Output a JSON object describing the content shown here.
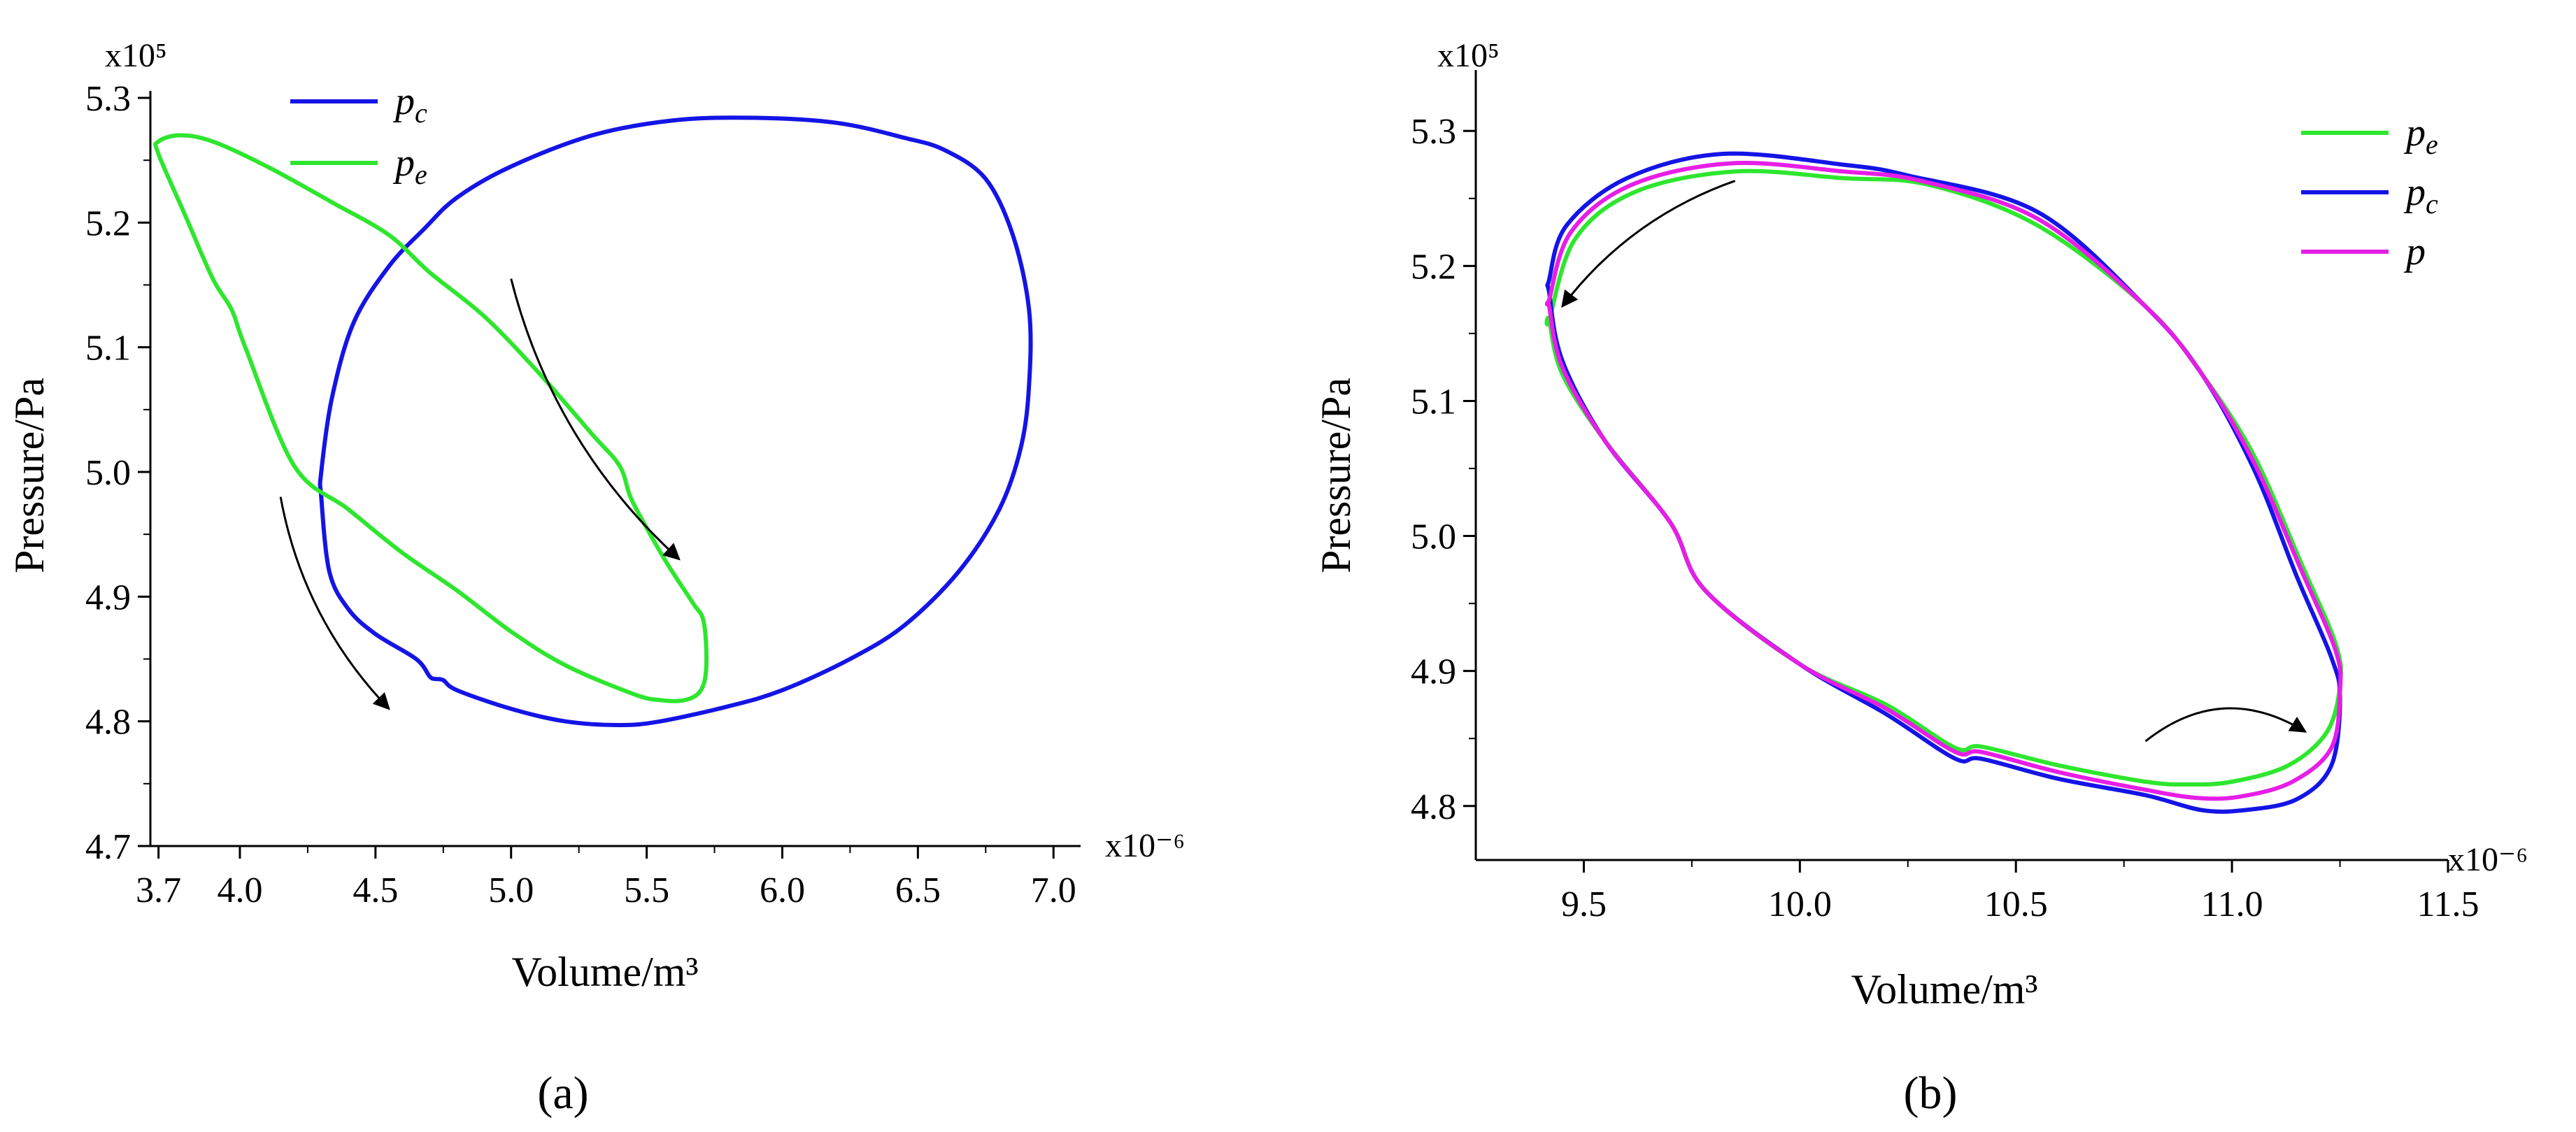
{
  "chart_data": [
    {
      "panel_label": "(a)",
      "type": "line",
      "xlabel": "Volume/m³",
      "ylabel": "Pressure/Pa",
      "x_multiplier": "x10⁻⁶",
      "y_multiplier": "x10⁵",
      "xlim": [
        3.67,
        7.1
      ],
      "ylim": [
        4.7,
        5.3
      ],
      "xticks": [
        "3.7",
        "4.0",
        "4.5",
        "5.0",
        "5.5",
        "6.0",
        "6.5",
        "7.0"
      ],
      "yticks": [
        "4.7",
        "4.8",
        "4.9",
        "5.0",
        "5.1",
        "5.2",
        "5.3"
      ],
      "legend_position": "top-left",
      "series": [
        {
          "name": "p_c",
          "color": "#1414e6",
          "closed": true,
          "x": [
            4.3,
            4.34,
            4.42,
            4.55,
            4.68,
            4.8,
            5.0,
            5.3,
            5.6,
            5.9,
            6.2,
            6.45,
            6.6,
            6.75,
            6.85,
            6.91,
            6.91,
            6.88,
            6.8,
            6.65,
            6.45,
            6.25,
            6.0,
            5.8,
            5.55,
            5.4,
            5.2,
            5.0,
            4.8,
            4.75,
            4.72,
            4.7,
            4.65,
            4.5,
            4.4,
            4.33,
            4.3
          ],
          "y": [
            5.0,
            5.06,
            5.12,
            5.165,
            5.195,
            5.22,
            5.245,
            5.27,
            5.282,
            5.284,
            5.28,
            5.268,
            5.258,
            5.235,
            5.19,
            5.13,
            5.07,
            5.02,
            4.97,
            4.92,
            4.877,
            4.85,
            4.825,
            4.812,
            4.8,
            4.797,
            4.8,
            4.81,
            4.825,
            4.833,
            4.834,
            4.836,
            4.85,
            4.87,
            4.89,
            4.92,
            4.98
          ]
        },
        {
          "name": "p_e",
          "color": "#2ee62e",
          "closed": true,
          "x": [
            3.7,
            3.78,
            3.9,
            4.1,
            4.35,
            4.55,
            4.7,
            4.9,
            5.1,
            5.3,
            5.4,
            5.44,
            5.5,
            5.58,
            5.67,
            5.71,
            5.72,
            5.7,
            5.64,
            5.55,
            5.45,
            5.2,
            5.0,
            4.8,
            4.6,
            4.4,
            4.2,
            4.02,
            3.97,
            3.9,
            3.8,
            3.7
          ],
          "y": [
            5.265,
            5.27,
            5.265,
            5.245,
            5.215,
            5.19,
            5.16,
            5.125,
            5.08,
            5.03,
            5.005,
            4.98,
            4.955,
            4.925,
            4.895,
            4.88,
            4.845,
            4.825,
            4.817,
            4.817,
            4.822,
            4.845,
            4.872,
            4.905,
            4.935,
            4.97,
            5.005,
            5.1,
            5.13,
            5.155,
            5.205,
            5.255
          ]
        }
      ],
      "arrows": [
        {
          "x": [
            5.0,
            5.62
          ],
          "y": [
            5.155,
            4.93
          ]
        },
        {
          "x": [
            4.15,
            4.55
          ],
          "y": [
            4.98,
            4.81
          ]
        }
      ]
    },
    {
      "panel_label": "(b)",
      "type": "line",
      "xlabel": "Volume/m³",
      "ylabel": "Pressure/Pa",
      "x_multiplier": "x10⁻⁶",
      "y_multiplier": "x10⁵",
      "xlim": [
        9.25,
        11.5
      ],
      "ylim": [
        4.76,
        5.34
      ],
      "xticks": [
        "9.5",
        "10.0",
        "10.5",
        "11.0",
        "11.5"
      ],
      "yticks": [
        "4.8",
        "4.9",
        "5.0",
        "5.1",
        "5.2",
        "5.3"
      ],
      "legend_position": "top-right",
      "series": [
        {
          "name": "p_e",
          "color": "#2ee62e",
          "closed": true,
          "x": [
            9.42,
            9.48,
            9.62,
            9.85,
            10.1,
            10.3,
            10.55,
            10.8,
            10.93,
            11.05,
            11.16,
            11.24,
            11.25,
            11.22,
            11.13,
            11.0,
            10.9,
            10.8,
            10.6,
            10.42,
            10.36,
            10.2,
            10.0,
            9.78,
            9.7,
            9.55,
            9.45,
            9.42
          ],
          "y": [
            5.16,
            5.22,
            5.255,
            5.27,
            5.265,
            5.26,
            5.23,
            5.17,
            5.12,
            5.06,
            4.98,
            4.92,
            4.89,
            4.855,
            4.83,
            4.818,
            4.816,
            4.818,
            4.83,
            4.844,
            4.843,
            4.875,
            4.905,
            4.96,
            5.01,
            5.07,
            5.12,
            5.16
          ]
        },
        {
          "name": "p_c",
          "color": "#1414e6",
          "closed": true,
          "x": [
            9.42,
            9.46,
            9.6,
            9.82,
            10.1,
            10.25,
            10.55,
            10.8,
            10.93,
            11.05,
            11.15,
            11.23,
            11.25,
            11.23,
            11.15,
            11.03,
            10.93,
            10.8,
            10.6,
            10.42,
            10.36,
            10.2,
            10.0,
            9.78,
            9.7,
            9.55,
            9.45,
            9.42
          ],
          "y": [
            5.19,
            5.23,
            5.265,
            5.283,
            5.275,
            5.267,
            5.24,
            5.17,
            5.12,
            5.05,
            4.97,
            4.91,
            4.88,
            4.83,
            4.805,
            4.797,
            4.797,
            4.808,
            4.82,
            4.835,
            4.835,
            4.868,
            4.905,
            4.96,
            5.01,
            5.07,
            5.13,
            5.18
          ]
        },
        {
          "name": "p",
          "color": "#e61ee6",
          "closed": true,
          "x": [
            9.42,
            9.47,
            9.61,
            9.84,
            10.1,
            10.28,
            10.55,
            10.8,
            10.93,
            11.05,
            11.16,
            11.24,
            11.25,
            11.23,
            11.14,
            11.02,
            10.92,
            10.8,
            10.6,
            10.42,
            10.36,
            10.2,
            10.0,
            9.78,
            9.7,
            9.55,
            9.45,
            9.42
          ],
          "y": [
            5.175,
            5.225,
            5.26,
            5.276,
            5.27,
            5.263,
            5.235,
            5.17,
            5.12,
            5.055,
            4.975,
            4.915,
            4.885,
            4.843,
            4.818,
            4.807,
            4.806,
            4.812,
            4.825,
            4.84,
            4.84,
            4.872,
            4.905,
            4.96,
            5.01,
            5.07,
            5.125,
            5.17
          ]
        }
      ],
      "arrows": [
        {
          "x": [
            9.85,
            9.45
          ],
          "y": [
            5.263,
            5.17
          ]
        },
        {
          "x": [
            10.8,
            11.17
          ],
          "y": [
            4.848,
            4.855
          ]
        }
      ]
    }
  ]
}
